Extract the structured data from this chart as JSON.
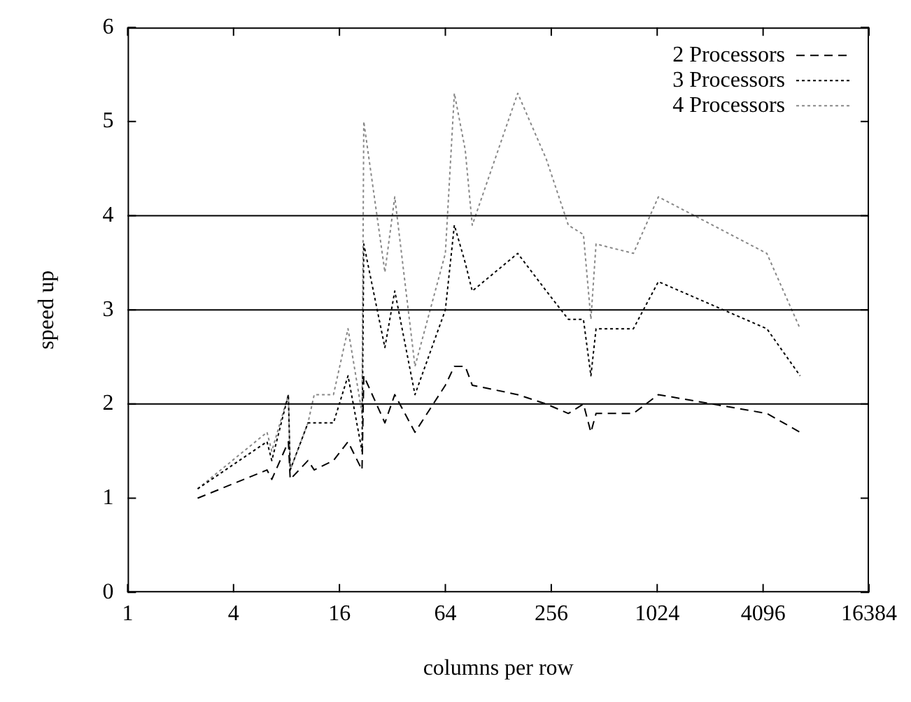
{
  "chart_data": {
    "type": "line",
    "xlabel": "columns per row",
    "ylabel": "speed up",
    "x": [
      2.5,
      6.2,
      6.6,
      8.2,
      8.4,
      10.6,
      11.5,
      14.8,
      17.9,
      21.5,
      22,
      29,
      33,
      43,
      64,
      72,
      83,
      91,
      165,
      240,
      320,
      390,
      430,
      460,
      750,
      1040,
      4300,
      6650
    ],
    "series": [
      {
        "name": "2 Processors",
        "color": "#000000",
        "line_style": "dashed",
        "values": [
          1.0,
          1.3,
          1.2,
          1.6,
          1.2,
          1.4,
          1.3,
          1.4,
          1.6,
          1.3,
          2.3,
          1.8,
          2.1,
          1.7,
          2.2,
          2.4,
          2.4,
          2.2,
          2.1,
          2.0,
          1.9,
          2.0,
          1.7,
          1.9,
          1.9,
          2.1,
          1.9,
          1.7
        ]
      },
      {
        "name": "3 Processors",
        "color": "#000000",
        "line_style": "dotted",
        "values": [
          1.1,
          1.6,
          1.4,
          2.1,
          1.3,
          1.8,
          1.8,
          1.8,
          2.3,
          1.5,
          3.7,
          2.6,
          3.2,
          2.1,
          3.0,
          3.9,
          3.5,
          3.2,
          3.6,
          3.2,
          2.9,
          2.9,
          2.3,
          2.8,
          2.8,
          3.3,
          2.8,
          2.3
        ]
      },
      {
        "name": "4 Processors",
        "color": "#888888",
        "line_style": "dotted",
        "values": [
          1.1,
          1.7,
          1.5,
          2.1,
          1.3,
          1.8,
          2.1,
          2.1,
          2.8,
          1.9,
          5.0,
          3.4,
          4.2,
          2.4,
          3.6,
          5.3,
          4.7,
          3.9,
          5.3,
          4.6,
          3.9,
          3.8,
          2.9,
          3.7,
          3.6,
          4.2,
          3.6,
          2.8
        ]
      }
    ],
    "log": "x",
    "xlim": [
      1,
      16384
    ],
    "xticks": [
      1,
      4,
      16,
      64,
      256,
      1024,
      4096,
      16384
    ],
    "ylim": [
      0,
      6
    ],
    "yticks": [
      0,
      1,
      2,
      3,
      4,
      5,
      6
    ],
    "ref_lines": [
      {
        "axis": "y",
        "value": 2,
        "color": "#000000"
      },
      {
        "axis": "y",
        "value": 3,
        "color": "#000000"
      },
      {
        "axis": "y",
        "value": 4,
        "color": "#000000"
      }
    ],
    "grid": false,
    "legend": "top right",
    "marker": "none"
  }
}
